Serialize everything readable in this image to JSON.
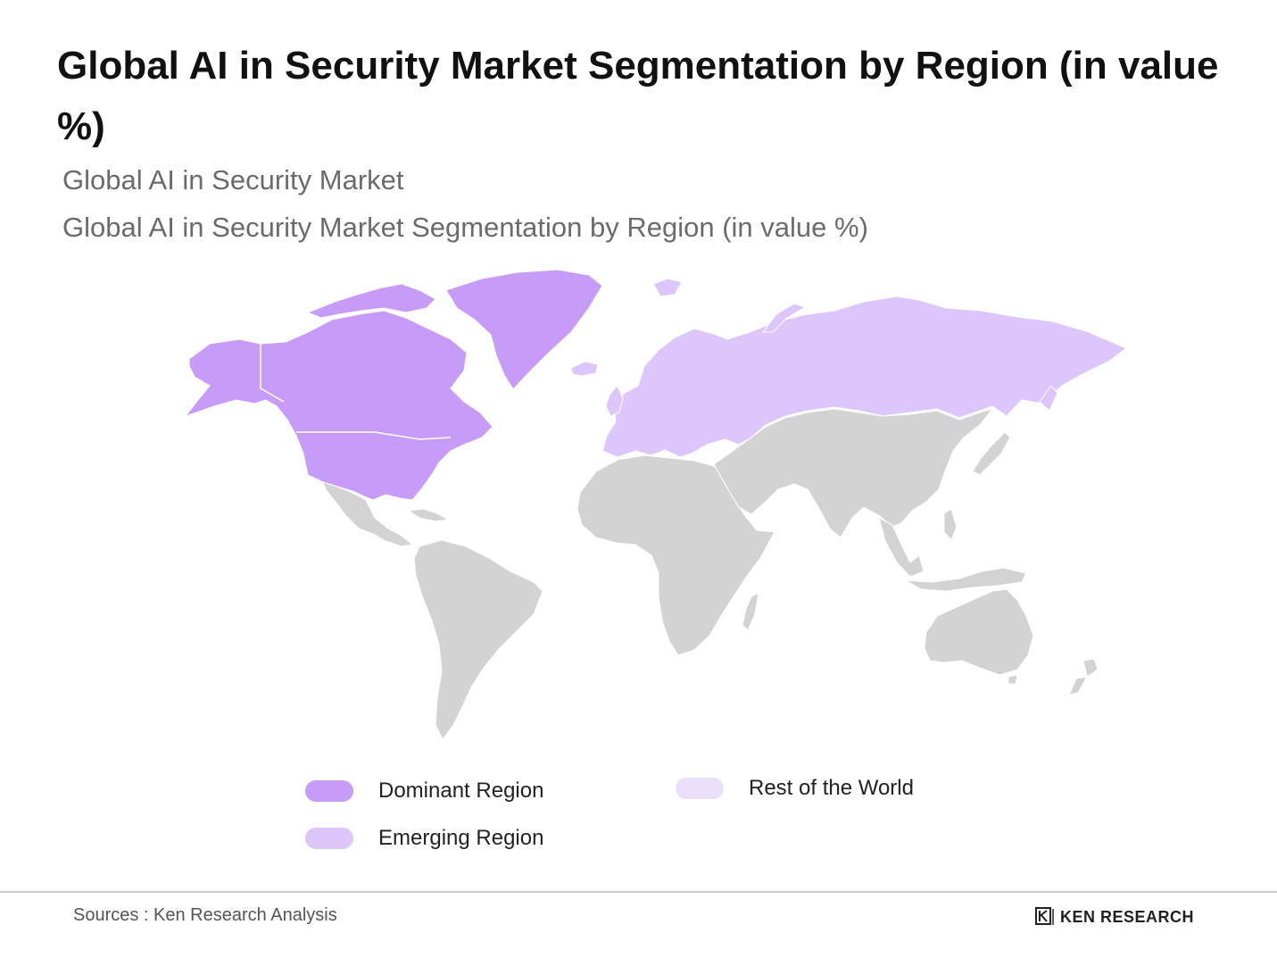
{
  "title": "Global AI in Security Market Segmentation by Region (in value %)",
  "subtitle_1": "Global AI in Security Market",
  "subtitle_2": "Global AI in Security Market Segmentation by Region (in value %)",
  "legend": {
    "dominant": {
      "label": "Dominant Region",
      "color": "#c79cf9"
    },
    "emerging": {
      "label": "Emerging Region",
      "color": "#dcc6fb"
    },
    "rest": {
      "label": "Rest of the World",
      "color": "#ebdffc"
    }
  },
  "map": {
    "dominant_regions": [
      "North America",
      "Greenland"
    ],
    "emerging_regions": [
      "Europe",
      "Russia"
    ],
    "other_land_color": "#d3d3d3"
  },
  "footer": {
    "source": "Sources : Ken Research Analysis",
    "logo_text": "KEN RESEARCH"
  }
}
